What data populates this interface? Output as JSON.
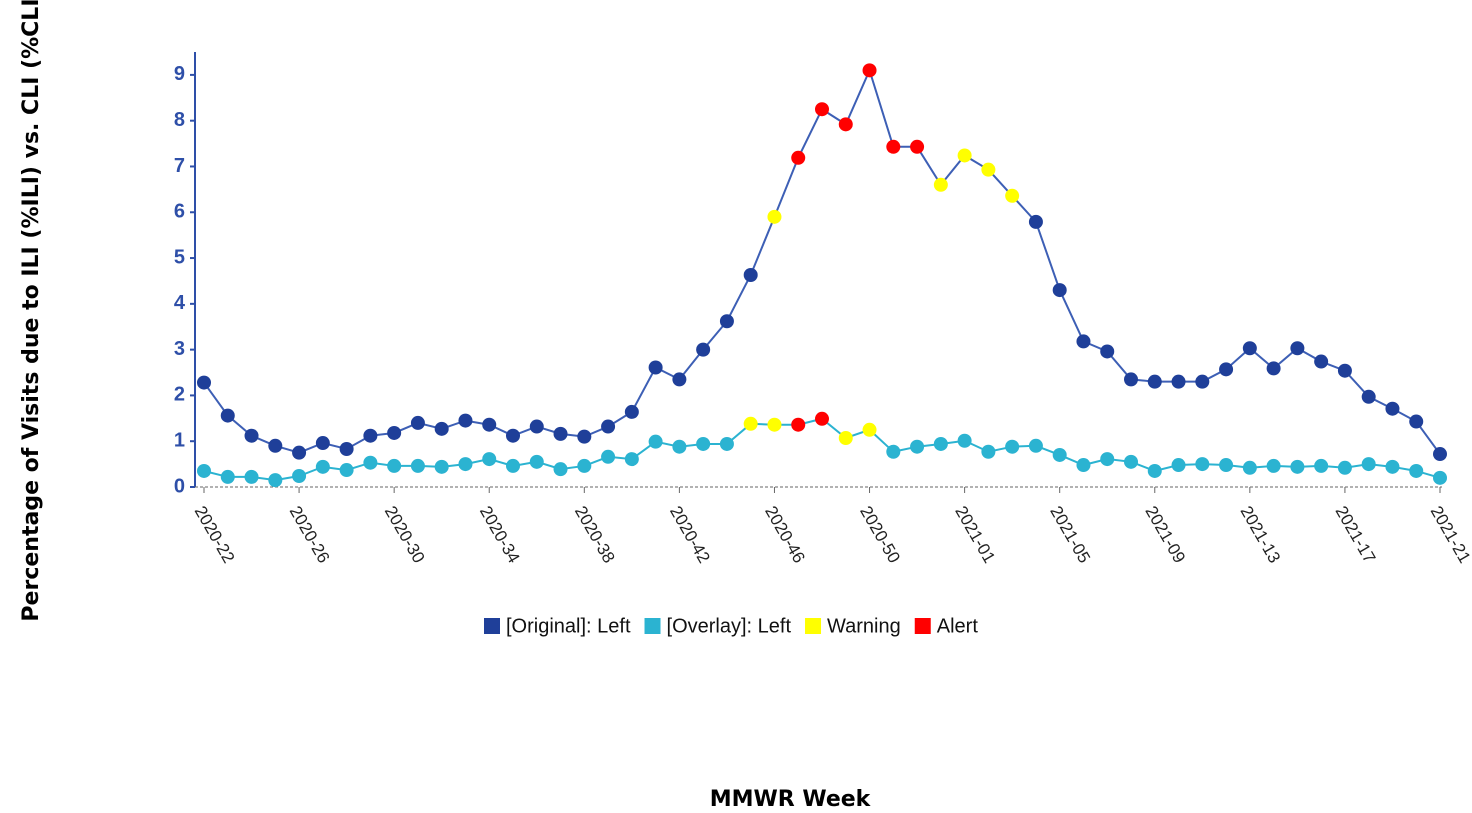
{
  "chart_data": {
    "type": "line",
    "y_label": "Percentage of Visits due to ILI (%ILI) vs. CLI (%CLI)",
    "x_label": "MMWR Week",
    "categories": [
      "2020-22",
      null,
      null,
      null,
      "2020-26",
      null,
      null,
      null,
      "2020-30",
      null,
      null,
      null,
      "2020-34",
      null,
      null,
      null,
      "2020-38",
      null,
      null,
      null,
      "2020-42",
      null,
      null,
      null,
      "2020-46",
      null,
      null,
      null,
      "2020-50",
      null,
      null,
      null,
      "2021-01",
      null,
      null,
      null,
      "2021-05",
      null,
      null,
      null,
      "2021-09",
      null,
      null,
      null,
      "2021-13",
      null,
      null,
      null,
      "2021-17",
      null,
      null,
      null,
      "2021-21"
    ],
    "ylim": [
      0,
      9.5
    ],
    "yticks": [
      0,
      1,
      2,
      3,
      4,
      5,
      6,
      7,
      8,
      9
    ],
    "series": [
      {
        "name": "[Original]: Left",
        "color": "#1f3f99",
        "line_color": "#3d5fb5",
        "values": [
          2.28,
          1.56,
          1.12,
          0.9,
          0.75,
          0.96,
          0.83,
          1.12,
          1.18,
          1.4,
          1.27,
          1.45,
          1.36,
          1.12,
          1.32,
          1.16,
          1.1,
          1.32,
          1.64,
          2.61,
          2.35,
          3.0,
          3.62,
          4.63,
          5.9,
          7.19,
          8.25,
          7.92,
          9.1,
          7.43,
          7.43,
          6.6,
          7.24,
          6.93,
          6.36,
          5.79,
          4.3,
          3.18,
          2.96,
          2.35,
          2.3,
          2.3,
          2.3,
          2.57,
          3.03,
          2.59,
          3.03,
          2.74,
          2.54,
          1.97,
          1.71,
          1.43,
          0.72
        ],
        "point_colors": [
          "#1f3f99",
          "#1f3f99",
          "#1f3f99",
          "#1f3f99",
          "#1f3f99",
          "#1f3f99",
          "#1f3f99",
          "#1f3f99",
          "#1f3f99",
          "#1f3f99",
          "#1f3f99",
          "#1f3f99",
          "#1f3f99",
          "#1f3f99",
          "#1f3f99",
          "#1f3f99",
          "#1f3f99",
          "#1f3f99",
          "#1f3f99",
          "#1f3f99",
          "#1f3f99",
          "#1f3f99",
          "#1f3f99",
          "#1f3f99",
          "#ffff00",
          "#ff0000",
          "#ff0000",
          "#ff0000",
          "#ff0000",
          "#ff0000",
          "#ff0000",
          "#ffff00",
          "#ffff00",
          "#ffff00",
          "#ffff00",
          "#1f3f99",
          "#1f3f99",
          "#1f3f99",
          "#1f3f99",
          "#1f3f99",
          "#1f3f99",
          "#1f3f99",
          "#1f3f99",
          "#1f3f99",
          "#1f3f99",
          "#1f3f99",
          "#1f3f99",
          "#1f3f99",
          "#1f3f99",
          "#1f3f99",
          "#1f3f99",
          "#1f3f99",
          "#1f3f99"
        ]
      },
      {
        "name": "[Overlay]: Left",
        "color": "#2bb3d1",
        "line_color": "#2bb3d1",
        "values": [
          0.35,
          0.22,
          0.22,
          0.15,
          0.24,
          0.44,
          0.37,
          0.53,
          0.46,
          0.46,
          0.44,
          0.5,
          0.61,
          0.46,
          0.55,
          0.39,
          0.46,
          0.66,
          0.61,
          0.99,
          0.88,
          0.94,
          0.94,
          1.38,
          1.36,
          1.36,
          1.49,
          1.07,
          1.25,
          0.77,
          0.88,
          0.94,
          1.01,
          0.77,
          0.88,
          0.9,
          0.7,
          0.48,
          0.61,
          0.55,
          0.35,
          0.48,
          0.5,
          0.48,
          0.42,
          0.46,
          0.44,
          0.46,
          0.42,
          0.5,
          0.44,
          0.35,
          0.2
        ],
        "point_colors": [
          "#2bb3d1",
          "#2bb3d1",
          "#2bb3d1",
          "#2bb3d1",
          "#2bb3d1",
          "#2bb3d1",
          "#2bb3d1",
          "#2bb3d1",
          "#2bb3d1",
          "#2bb3d1",
          "#2bb3d1",
          "#2bb3d1",
          "#2bb3d1",
          "#2bb3d1",
          "#2bb3d1",
          "#2bb3d1",
          "#2bb3d1",
          "#2bb3d1",
          "#2bb3d1",
          "#2bb3d1",
          "#2bb3d1",
          "#2bb3d1",
          "#2bb3d1",
          "#ffff00",
          "#ffff00",
          "#ff0000",
          "#ff0000",
          "#ffff00",
          "#ffff00",
          "#2bb3d1",
          "#2bb3d1",
          "#2bb3d1",
          "#2bb3d1",
          "#2bb3d1",
          "#2bb3d1",
          "#2bb3d1",
          "#2bb3d1",
          "#2bb3d1",
          "#2bb3d1",
          "#2bb3d1",
          "#2bb3d1",
          "#2bb3d1",
          "#2bb3d1",
          "#2bb3d1",
          "#2bb3d1",
          "#2bb3d1",
          "#2bb3d1",
          "#2bb3d1",
          "#2bb3d1",
          "#2bb3d1",
          "#2bb3d1",
          "#2bb3d1",
          "#2bb3d1"
        ]
      }
    ],
    "legend_markers": [
      {
        "name": "Warning",
        "color": "#ffff00"
      },
      {
        "name": "Alert",
        "color": "#ff0000"
      }
    ]
  }
}
